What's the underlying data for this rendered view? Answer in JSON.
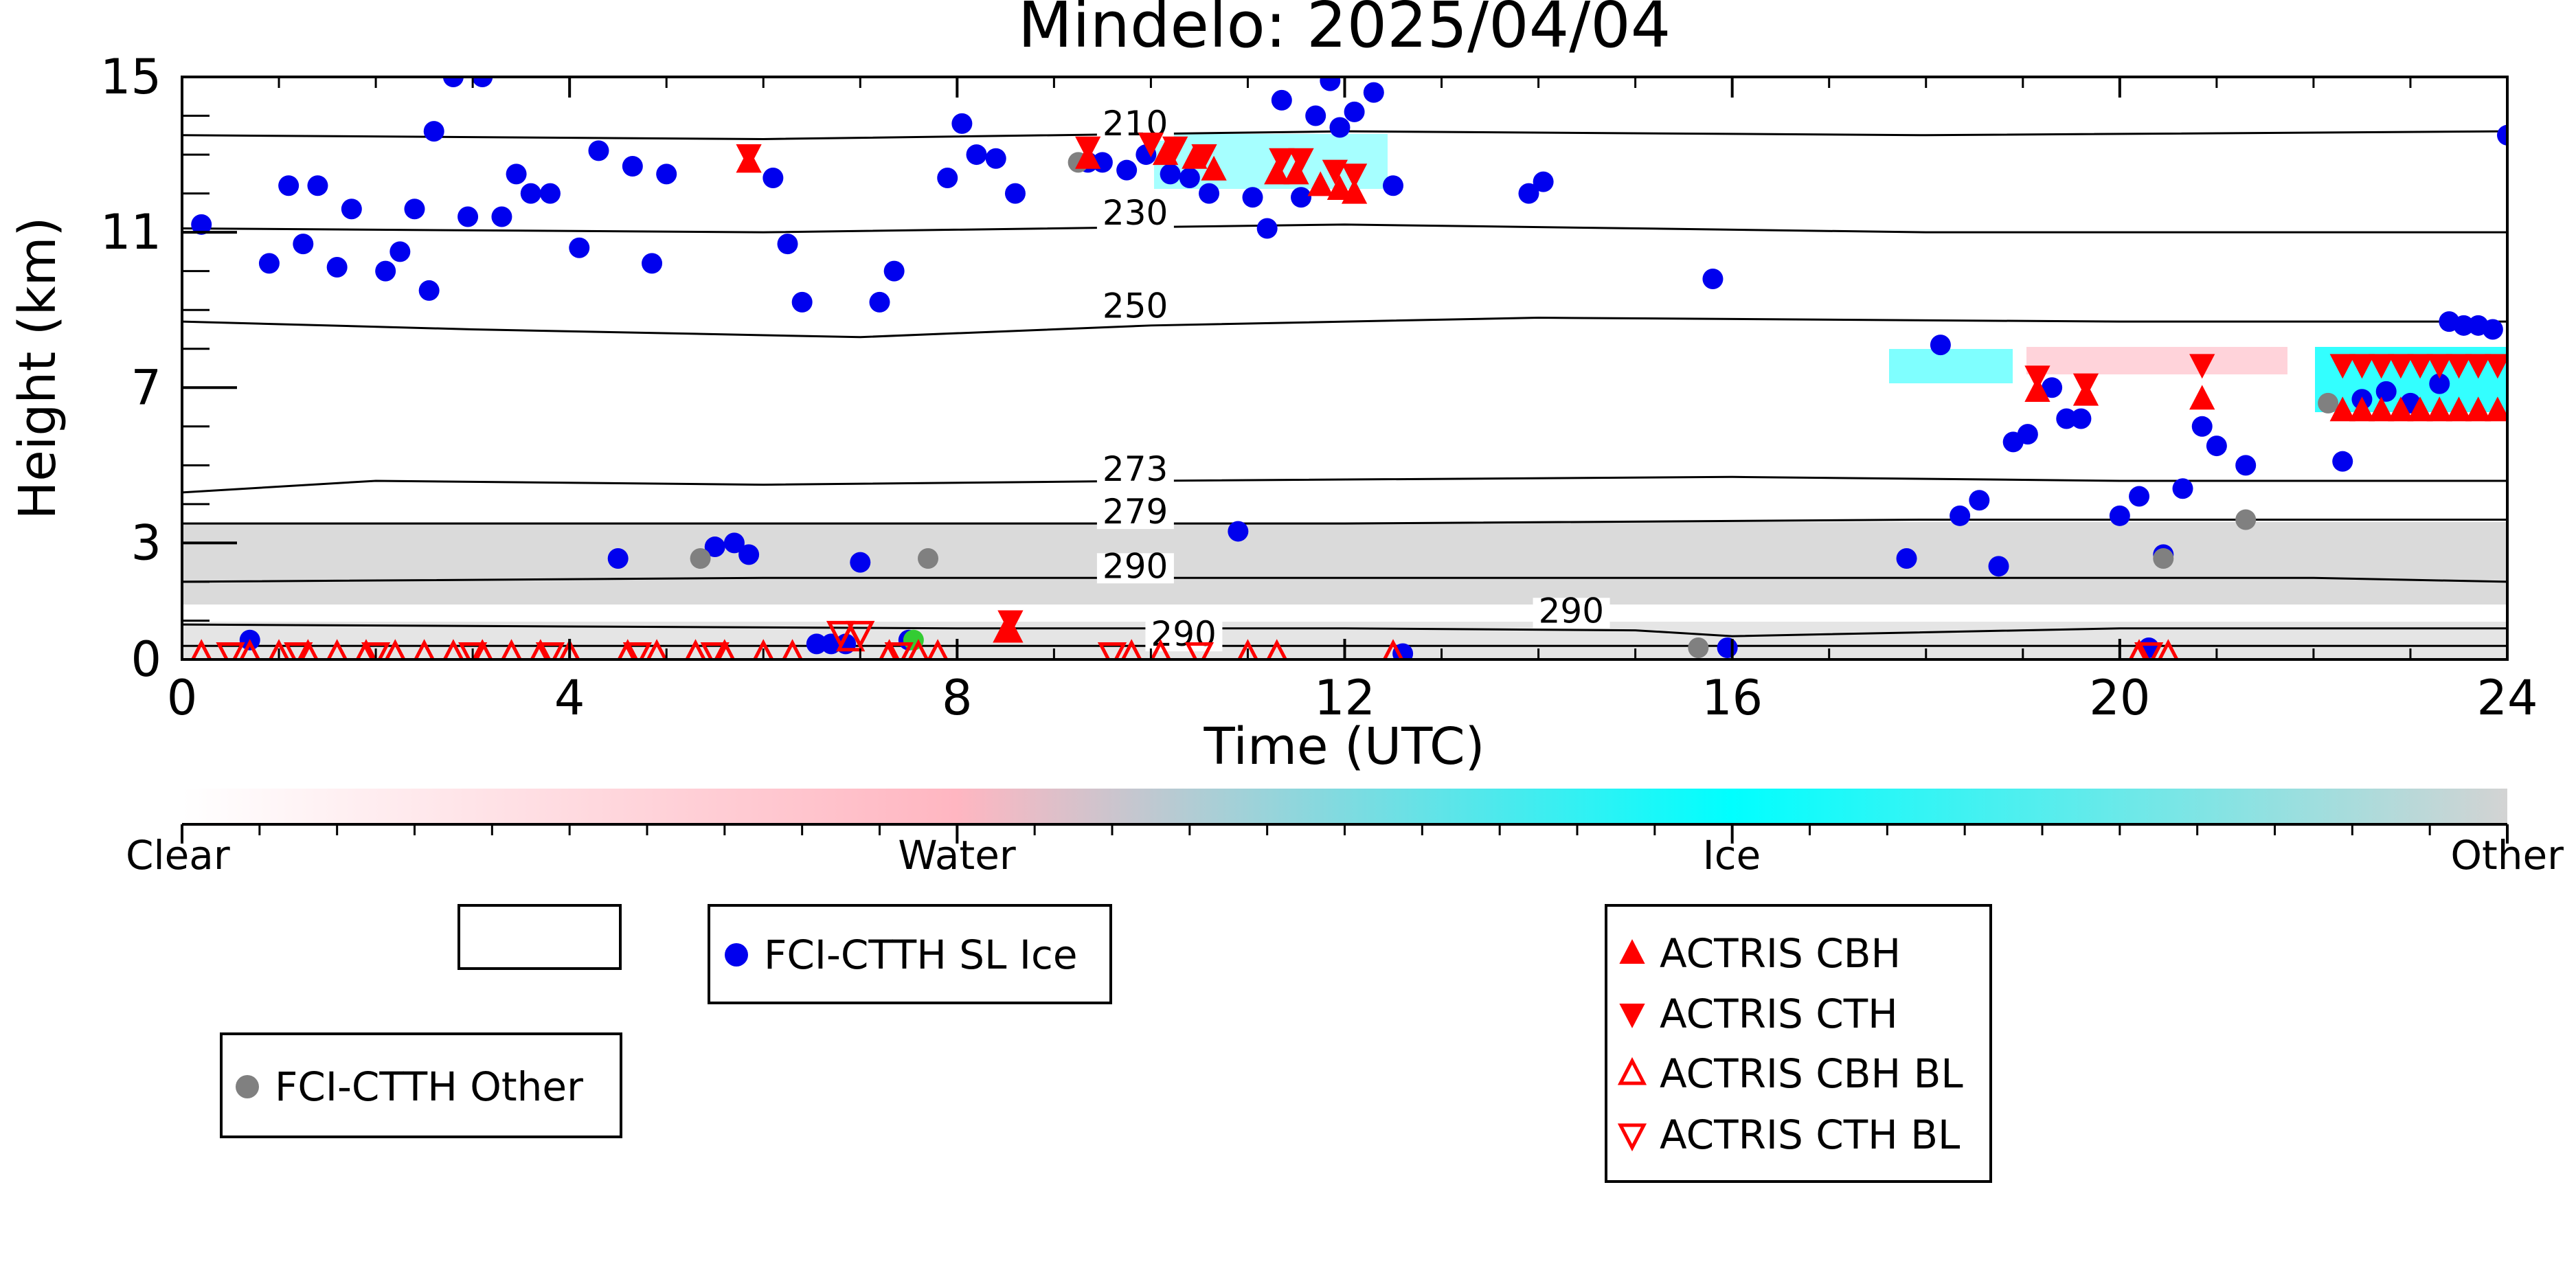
{
  "chart_data": {
    "type": "scatter",
    "title": "Mindelo: 2025/04/04",
    "xlabel": "Time (UTC)",
    "ylabel": "Height (km)",
    "xlim": [
      0,
      24
    ],
    "ylim": [
      0,
      15
    ],
    "xticks": [
      "0",
      "4",
      "8",
      "12",
      "16",
      "20",
      "24"
    ],
    "yticks": [
      "0",
      "3",
      "7",
      "11",
      "15"
    ],
    "colorbar": {
      "labels": [
        "Clear",
        "Water",
        "Ice",
        "Other"
      ],
      "colors": [
        "#ffffff",
        "#ffb6c1",
        "#00ffff",
        "#d3d3d3"
      ]
    },
    "isotherms": [
      {
        "label": "210",
        "label_x": 9.5,
        "label_y": 13.5,
        "points": [
          [
            0,
            13.5
          ],
          [
            6,
            13.4
          ],
          [
            12,
            13.6
          ],
          [
            18,
            13.5
          ],
          [
            24,
            13.6
          ]
        ]
      },
      {
        "label": "230",
        "label_x": 9.5,
        "label_y": 11.2,
        "points": [
          [
            0,
            11.1
          ],
          [
            6,
            11.0
          ],
          [
            12,
            11.2
          ],
          [
            18,
            11.0
          ],
          [
            24,
            11.0
          ]
        ]
      },
      {
        "label": "250",
        "label_x": 9.5,
        "label_y": 8.8,
        "points": [
          [
            0,
            8.7
          ],
          [
            3,
            8.5
          ],
          [
            7,
            8.3
          ],
          [
            10,
            8.6
          ],
          [
            14,
            8.8
          ],
          [
            20,
            8.7
          ],
          [
            24,
            8.7
          ]
        ]
      },
      {
        "label": "273",
        "label_x": 9.5,
        "label_y": 4.6,
        "points": [
          [
            0,
            4.3
          ],
          [
            2,
            4.6
          ],
          [
            6,
            4.5
          ],
          [
            10,
            4.6
          ],
          [
            16,
            4.7
          ],
          [
            20,
            4.6
          ],
          [
            24,
            4.6
          ]
        ]
      },
      {
        "label": "279",
        "label_x": 9.5,
        "label_y": 3.5,
        "points": [
          [
            0,
            3.5
          ],
          [
            6,
            3.5
          ],
          [
            12,
            3.5
          ],
          [
            18,
            3.6
          ],
          [
            24,
            3.6
          ]
        ]
      },
      {
        "label": "290",
        "label_x": 9.5,
        "label_y": 2.1,
        "points": [
          [
            0,
            2.0
          ],
          [
            6,
            2.1
          ],
          [
            12,
            2.1
          ],
          [
            18,
            2.1
          ],
          [
            22,
            2.1
          ],
          [
            24,
            2.0
          ]
        ]
      },
      {
        "label": "290",
        "label_x": 14.0,
        "label_y": 0.95,
        "points": [
          [
            0,
            0.9
          ],
          [
            4,
            0.85
          ],
          [
            8,
            0.8
          ],
          [
            12,
            0.8
          ],
          [
            15,
            0.75
          ],
          [
            16,
            0.6
          ],
          [
            20,
            0.8
          ],
          [
            24,
            0.8
          ]
        ]
      },
      {
        "label": "290",
        "label_x": 10.0,
        "label_y": 0.35,
        "points": [
          [
            0,
            0.35
          ],
          [
            12,
            0.35
          ],
          [
            24,
            0.35
          ]
        ]
      }
    ],
    "legend_entries": [
      {
        "label": "",
        "marker": "none"
      },
      {
        "label": "FCI-CTTH SL Ice",
        "marker": "circle",
        "color": "#0000ee"
      },
      {
        "label": "FCI-CTTH Other",
        "marker": "circle",
        "color": "#808080"
      },
      {
        "label": "ACTRIS CBH",
        "marker": "triangle-up",
        "color": "#ff0000"
      },
      {
        "label": "ACTRIS CTH",
        "marker": "triangle-down",
        "color": "#ff0000"
      },
      {
        "label": "ACTRIS CBH BL",
        "marker": "triangle-up-open",
        "color": "#ff0000"
      },
      {
        "label": "ACTRIS CTH BL",
        "marker": "triangle-down-open",
        "color": "#ff0000"
      }
    ],
    "series": [
      {
        "name": "FCI-CTTH SL Ice",
        "marker": "circle",
        "color": "#0000ee",
        "points": [
          [
            0.2,
            11.2
          ],
          [
            0.7,
            0.5
          ],
          [
            0.9,
            10.2
          ],
          [
            1.1,
            12.2
          ],
          [
            1.25,
            10.7
          ],
          [
            1.4,
            12.2
          ],
          [
            1.6,
            10.1
          ],
          [
            1.75,
            11.6
          ],
          [
            2.1,
            10.0
          ],
          [
            2.25,
            10.5
          ],
          [
            2.4,
            11.6
          ],
          [
            2.55,
            9.5
          ],
          [
            2.6,
            13.6
          ],
          [
            2.8,
            15.0
          ],
          [
            2.95,
            11.4
          ],
          [
            3.1,
            15.0
          ],
          [
            3.3,
            11.4
          ],
          [
            3.45,
            12.5
          ],
          [
            3.6,
            12.0
          ],
          [
            3.8,
            12.0
          ],
          [
            4.1,
            10.6
          ],
          [
            4.3,
            13.1
          ],
          [
            4.5,
            2.6
          ],
          [
            4.65,
            12.7
          ],
          [
            4.85,
            10.2
          ],
          [
            5.0,
            12.5
          ],
          [
            5.5,
            2.9
          ],
          [
            5.7,
            3.0
          ],
          [
            5.85,
            2.7
          ],
          [
            6.1,
            12.4
          ],
          [
            6.25,
            10.7
          ],
          [
            6.4,
            9.2
          ],
          [
            6.55,
            0.4
          ],
          [
            6.7,
            0.4
          ],
          [
            6.85,
            0.4
          ],
          [
            7.0,
            2.5
          ],
          [
            7.2,
            9.2
          ],
          [
            7.35,
            10.0
          ],
          [
            7.5,
            0.5
          ],
          [
            7.9,
            12.4
          ],
          [
            8.05,
            13.8
          ],
          [
            8.2,
            13.0
          ],
          [
            8.4,
            12.9
          ],
          [
            8.6,
            12.0
          ],
          [
            9.35,
            12.8
          ],
          [
            9.5,
            12.8
          ],
          [
            9.75,
            12.6
          ],
          [
            9.95,
            13.0
          ],
          [
            10.2,
            12.5
          ],
          [
            10.4,
            12.4
          ],
          [
            10.6,
            12.0
          ],
          [
            10.9,
            3.3
          ],
          [
            11.05,
            11.9
          ],
          [
            11.2,
            11.1
          ],
          [
            11.35,
            14.4
          ],
          [
            11.55,
            11.9
          ],
          [
            11.7,
            14.0
          ],
          [
            11.85,
            14.9
          ],
          [
            11.95,
            13.7
          ],
          [
            12.1,
            14.1
          ],
          [
            12.3,
            14.6
          ],
          [
            12.5,
            12.2
          ],
          [
            12.6,
            0.15
          ],
          [
            13.9,
            12.0
          ],
          [
            14.05,
            12.3
          ],
          [
            15.8,
            9.8
          ],
          [
            15.95,
            0.3
          ],
          [
            17.8,
            2.6
          ],
          [
            18.15,
            8.1
          ],
          [
            18.35,
            3.7
          ],
          [
            18.55,
            4.1
          ],
          [
            18.75,
            2.4
          ],
          [
            18.9,
            5.6
          ],
          [
            19.05,
            5.8
          ],
          [
            19.3,
            7.0
          ],
          [
            19.45,
            6.2
          ],
          [
            19.6,
            6.2
          ],
          [
            20.0,
            3.7
          ],
          [
            20.2,
            4.2
          ],
          [
            20.3,
            0.3
          ],
          [
            20.45,
            2.7
          ],
          [
            20.65,
            4.4
          ],
          [
            20.85,
            6.0
          ],
          [
            21.0,
            5.5
          ],
          [
            21.3,
            5.0
          ],
          [
            22.3,
            5.1
          ],
          [
            22.5,
            6.7
          ],
          [
            22.75,
            6.9
          ],
          [
            23.0,
            6.6
          ],
          [
            23.3,
            7.1
          ],
          [
            23.4,
            8.7
          ],
          [
            23.55,
            8.6
          ],
          [
            23.7,
            8.6
          ],
          [
            23.85,
            8.5
          ],
          [
            24.0,
            13.5
          ]
        ]
      },
      {
        "name": "FCI-CTTH Other",
        "marker": "circle",
        "color": "#808080",
        "points": [
          [
            5.35,
            2.6
          ],
          [
            7.7,
            2.6
          ],
          [
            9.25,
            12.8
          ],
          [
            15.65,
            0.3
          ],
          [
            20.45,
            2.6
          ],
          [
            21.3,
            3.6
          ],
          [
            22.15,
            6.6
          ]
        ]
      },
      {
        "name": "",
        "marker": "circle",
        "color": "#33cc33",
        "points": [
          [
            7.55,
            0.5
          ]
        ]
      },
      {
        "name": "ACTRIS CBH",
        "marker": "triangle-up",
        "color": "#ff0000",
        "points": [
          [
            5.85,
            12.8
          ],
          [
            8.5,
            0.7
          ],
          [
            8.55,
            0.7
          ],
          [
            9.35,
            12.9
          ],
          [
            10.15,
            13.0
          ],
          [
            10.45,
            12.9
          ],
          [
            10.65,
            12.6
          ],
          [
            11.3,
            12.5
          ],
          [
            11.5,
            12.5
          ],
          [
            11.75,
            12.2
          ],
          [
            11.95,
            12.1
          ],
          [
            12.1,
            12.0
          ],
          [
            19.15,
            6.9
          ],
          [
            19.65,
            6.8
          ],
          [
            20.85,
            6.7
          ],
          [
            22.3,
            6.4
          ],
          [
            22.5,
            6.4
          ],
          [
            22.7,
            6.4
          ],
          [
            22.9,
            6.4
          ],
          [
            23.1,
            6.4
          ],
          [
            23.3,
            6.4
          ],
          [
            23.5,
            6.4
          ],
          [
            23.7,
            6.4
          ],
          [
            23.9,
            6.4
          ]
        ]
      },
      {
        "name": "ACTRIS CTH",
        "marker": "triangle-down",
        "color": "#ff0000",
        "points": [
          [
            5.85,
            13.0
          ],
          [
            8.55,
            1.0
          ],
          [
            9.35,
            13.2
          ],
          [
            10.0,
            13.3
          ],
          [
            10.25,
            13.2
          ],
          [
            10.55,
            13.0
          ],
          [
            11.35,
            12.9
          ],
          [
            11.55,
            12.9
          ],
          [
            11.9,
            12.6
          ],
          [
            12.1,
            12.5
          ],
          [
            19.15,
            7.3
          ],
          [
            19.65,
            7.1
          ],
          [
            20.85,
            7.6
          ],
          [
            22.3,
            7.6
          ],
          [
            22.5,
            7.6
          ],
          [
            22.7,
            7.6
          ],
          [
            22.9,
            7.6
          ],
          [
            23.1,
            7.6
          ],
          [
            23.3,
            7.6
          ],
          [
            23.5,
            7.6
          ],
          [
            23.7,
            7.6
          ],
          [
            23.9,
            7.6
          ]
        ]
      },
      {
        "name": "ACTRIS CBH BL",
        "marker": "triangle-up-open",
        "color": "#ff0000",
        "points": [
          [
            0.2,
            0.1
          ],
          [
            0.7,
            0.1
          ],
          [
            1.0,
            0.1
          ],
          [
            1.3,
            0.1
          ],
          [
            1.6,
            0.1
          ],
          [
            1.9,
            0.1
          ],
          [
            2.2,
            0.1
          ],
          [
            2.5,
            0.1
          ],
          [
            2.8,
            0.1
          ],
          [
            3.1,
            0.1
          ],
          [
            3.4,
            0.1
          ],
          [
            3.7,
            0.1
          ],
          [
            4.0,
            0.1
          ],
          [
            4.6,
            0.1
          ],
          [
            4.9,
            0.1
          ],
          [
            5.3,
            0.1
          ],
          [
            5.6,
            0.1
          ],
          [
            6.0,
            0.1
          ],
          [
            6.3,
            0.1
          ],
          [
            6.9,
            0.5
          ],
          [
            7.3,
            0.1
          ],
          [
            7.6,
            0.1
          ],
          [
            7.8,
            0.1
          ],
          [
            9.8,
            0.1
          ],
          [
            10.1,
            0.1
          ],
          [
            11.0,
            0.1
          ],
          [
            11.3,
            0.1
          ],
          [
            12.5,
            0.1
          ],
          [
            20.2,
            0.1
          ],
          [
            20.5,
            0.1
          ]
        ]
      },
      {
        "name": "ACTRIS CTH BL",
        "marker": "triangle-down-open",
        "color": "#ff0000",
        "points": [
          [
            0.5,
            0.15
          ],
          [
            1.2,
            0.15
          ],
          [
            2.0,
            0.15
          ],
          [
            3.0,
            0.15
          ],
          [
            3.8,
            0.15
          ],
          [
            4.7,
            0.15
          ],
          [
            5.5,
            0.15
          ],
          [
            6.8,
            0.7
          ],
          [
            7.0,
            0.7
          ],
          [
            7.4,
            0.15
          ],
          [
            9.6,
            0.15
          ],
          [
            10.5,
            0.15
          ],
          [
            20.3,
            0.15
          ]
        ]
      }
    ]
  }
}
